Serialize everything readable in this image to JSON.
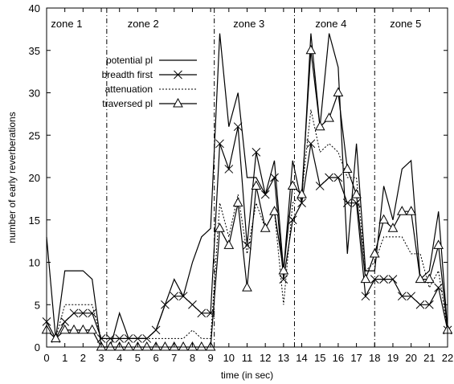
{
  "chart_data": {
    "type": "line",
    "title": "",
    "xlabel": "time (in sec)",
    "ylabel": "number of early reverberations",
    "xlim": [
      0,
      22
    ],
    "ylim": [
      0,
      40
    ],
    "xticks": [
      0,
      1,
      2,
      3,
      4,
      5,
      6,
      7,
      8,
      9,
      10,
      11,
      12,
      13,
      14,
      15,
      16,
      17,
      18,
      19,
      20,
      21,
      22
    ],
    "yticks": [
      0,
      5,
      10,
      15,
      20,
      25,
      30,
      35,
      40
    ],
    "grid": false,
    "legend_position": "upper-left",
    "zone_boundaries": [
      3.3,
      9.2,
      13.6,
      18
    ],
    "zones": [
      {
        "label": "zone 1",
        "x": 1.1
      },
      {
        "label": "zone 2",
        "x": 5.3
      },
      {
        "label": "zone 3",
        "x": 11.1
      },
      {
        "label": "zone 4",
        "x": 15.6
      },
      {
        "label": "zone 5",
        "x": 19.7
      }
    ],
    "series": [
      {
        "name": "potential pl",
        "style": "solid",
        "marker": "none",
        "x": [
          0,
          0.5,
          1,
          1.5,
          2,
          2.5,
          3,
          3.5,
          4,
          4.5,
          5,
          5.5,
          6,
          6.5,
          7,
          7.5,
          8,
          8.5,
          9,
          9.5,
          10,
          10.5,
          11,
          11.5,
          12,
          12.5,
          13,
          13.5,
          14,
          14.5,
          15,
          15.5,
          16,
          16.5,
          17,
          17.5,
          18,
          18.5,
          19,
          19.5,
          20,
          20.5,
          21,
          21.5,
          22
        ],
        "y": [
          13,
          1,
          9,
          9,
          9,
          8,
          0,
          0,
          4,
          1,
          1,
          1,
          2,
          5,
          8,
          6,
          10,
          13,
          14,
          37,
          26,
          30,
          20,
          20,
          18,
          22,
          9,
          22,
          17,
          37,
          26,
          37,
          33,
          11,
          24,
          9,
          9,
          19,
          15,
          21,
          22,
          8,
          9,
          16,
          2
        ]
      },
      {
        "name": "breadth first",
        "style": "solid",
        "marker": "x",
        "x": [
          0,
          0.5,
          1,
          1.5,
          2,
          2.5,
          3,
          3.5,
          4,
          4.5,
          5,
          5.5,
          6,
          6.5,
          7,
          7.5,
          8,
          8.5,
          9,
          9.5,
          10,
          10.5,
          11,
          11.5,
          12,
          12.5,
          13,
          13.5,
          14,
          14.5,
          15,
          15.5,
          16,
          16.5,
          17,
          17.5,
          18,
          18.5,
          19,
          19.5,
          20,
          20.5,
          21,
          21.5,
          22
        ],
        "y": [
          3,
          1,
          3,
          4,
          4,
          4,
          1,
          1,
          1,
          1,
          1,
          1,
          2,
          5,
          6,
          6,
          5,
          4,
          4,
          24,
          21,
          26,
          12,
          23,
          18,
          20,
          8,
          15,
          17,
          24,
          19,
          20,
          20,
          17,
          17,
          6,
          8,
          8,
          8,
          6,
          6,
          5,
          5,
          7,
          2
        ]
      },
      {
        "name": "attenuation",
        "style": "dotted",
        "marker": "none",
        "x": [
          0,
          0.5,
          1,
          1.5,
          2,
          2.5,
          3,
          3.5,
          4,
          4.5,
          5,
          5.5,
          6,
          6.5,
          7,
          7.5,
          8,
          8.5,
          9,
          9.5,
          10,
          10.5,
          11,
          11.5,
          12,
          12.5,
          13,
          13.5,
          14,
          14.5,
          15,
          15.5,
          16,
          16.5,
          17,
          17.5,
          18,
          18.5,
          19,
          19.5,
          20,
          20.5,
          21,
          21.5,
          22
        ],
        "y": [
          3,
          1,
          5,
          5,
          5,
          5,
          1,
          1,
          1,
          1,
          1,
          1,
          1,
          1,
          1,
          1,
          2,
          1,
          1,
          17,
          13,
          18,
          11,
          17,
          14,
          16,
          5,
          17,
          18,
          28,
          23,
          24,
          23,
          20,
          20,
          9,
          10,
          13,
          13,
          13,
          11,
          11,
          7,
          9,
          2
        ]
      },
      {
        "name": "traversed pl",
        "style": "solid",
        "marker": "triangle",
        "x": [
          0,
          0.5,
          1,
          1.5,
          2,
          2.5,
          3,
          3.5,
          4,
          4.5,
          5,
          5.5,
          6,
          6.5,
          7,
          7.5,
          8,
          8.5,
          9,
          9.5,
          10,
          10.5,
          11,
          11.5,
          12,
          12.5,
          13,
          13.5,
          14,
          14.5,
          15,
          15.5,
          16,
          16.5,
          17,
          17.5,
          18,
          18.5,
          19,
          19.5,
          20,
          20.5,
          21,
          21.5,
          22
        ],
        "y": [
          2,
          1,
          2,
          2,
          2,
          2,
          0,
          0,
          0,
          0,
          0,
          0,
          0,
          0,
          0,
          0,
          0,
          0,
          0,
          14,
          12,
          17,
          7,
          19,
          14,
          16,
          9,
          19,
          18,
          35,
          26,
          27,
          30,
          21,
          18,
          8,
          11,
          15,
          14,
          16,
          16,
          8,
          8,
          12,
          2
        ]
      }
    ]
  }
}
